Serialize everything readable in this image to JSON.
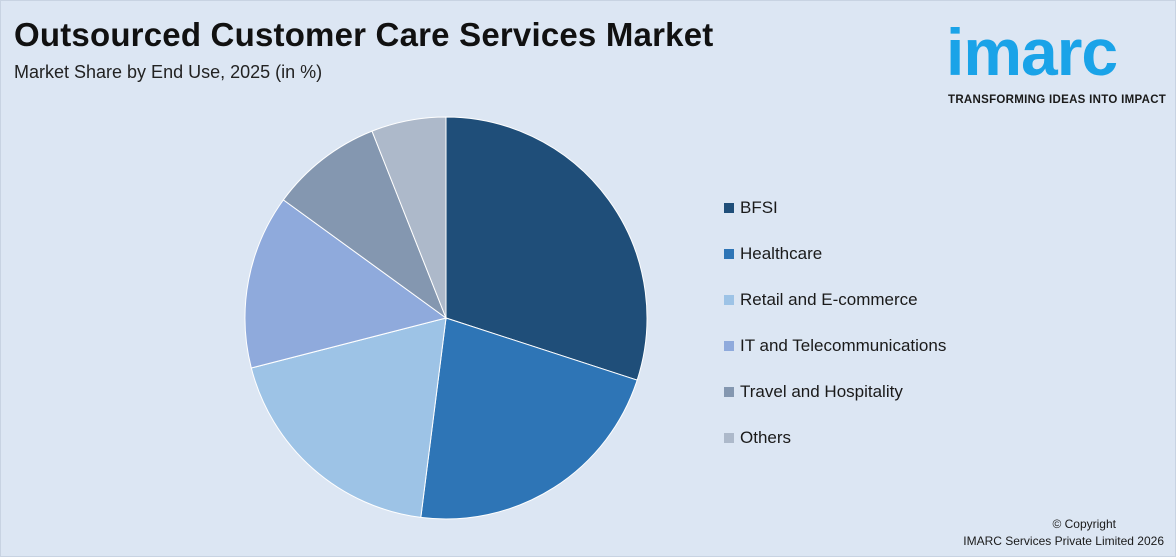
{
  "header": {
    "title": "Outsourced Customer Care Services Market",
    "subtitle": "Market Share by End Use, 2025 (in %)"
  },
  "logo": {
    "wordmark": "imarc",
    "tagline": "TRANSFORMING IDEAS INTO IMPACT",
    "color": "#1aa3e8"
  },
  "chart_data": {
    "type": "pie",
    "title": "Outsourced Customer Care Services Market",
    "subtitle": "Market Share by End Use, 2025 (in %)",
    "start": "12 o'clock",
    "direction": "clockwise",
    "legend_position": "right",
    "slices": [
      {
        "label": "BFSI",
        "value": 30,
        "color": "#1f4e79"
      },
      {
        "label": "Healthcare",
        "value": 22,
        "color": "#2e75b6"
      },
      {
        "label": "Retail and E-commerce",
        "value": 19,
        "color": "#9dc3e6"
      },
      {
        "label": "IT and Telecommunications",
        "value": 14,
        "color": "#8faadc"
      },
      {
        "label": "Travel and Hospitality",
        "value": 9,
        "color": "#8497b0"
      },
      {
        "label": "Others",
        "value": 6,
        "color": "#adb9ca"
      }
    ]
  },
  "footer": {
    "copyright_line1": "© Copyright",
    "copyright_line2": "IMARC Services Private Limited 2026"
  }
}
